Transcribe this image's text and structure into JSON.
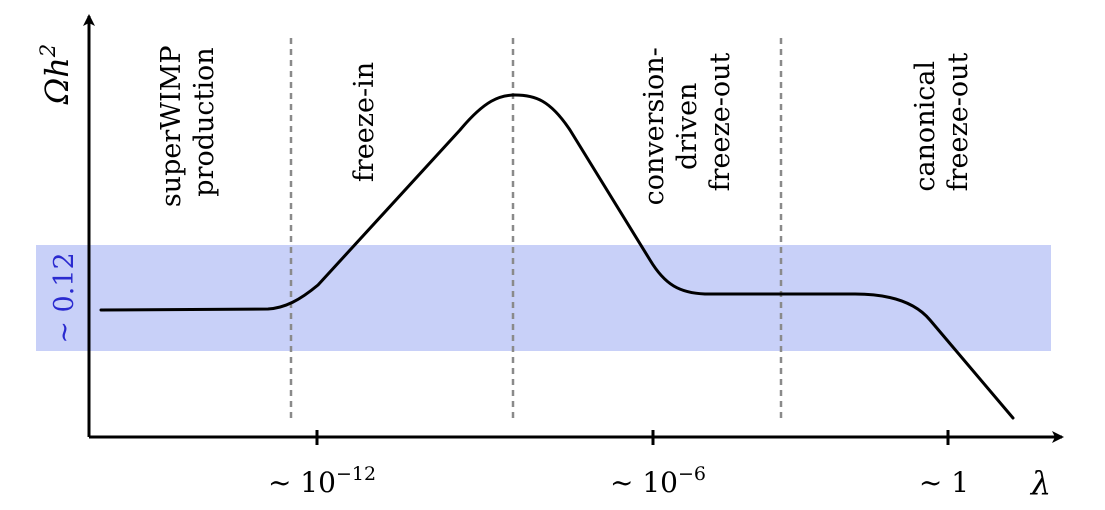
{
  "chart_data": {
    "type": "line",
    "title": "",
    "xlabel": "λ",
    "ylabel": "Ωh²",
    "ylabel_parts": {
      "base": "Ωh",
      "sup": "2"
    },
    "x_ticks": [
      {
        "label": "~ 10",
        "exp": "−12"
      },
      {
        "label": "~ 10",
        "exp": "−6"
      },
      {
        "label": "~ 1",
        "exp": ""
      }
    ],
    "band": {
      "label": "~ 0.12",
      "color": "#c8d0f8",
      "label_color": "#2a2acf"
    },
    "regions": [
      {
        "lines": [
          "superWIMP",
          "production"
        ]
      },
      {
        "lines": [
          "freeze-in"
        ]
      },
      {
        "lines": [
          "conversion-",
          "driven",
          "freeze-out"
        ]
      },
      {
        "lines": [
          "canonical",
          "freeze-out"
        ]
      }
    ],
    "grid": false,
    "legend": "none"
  }
}
